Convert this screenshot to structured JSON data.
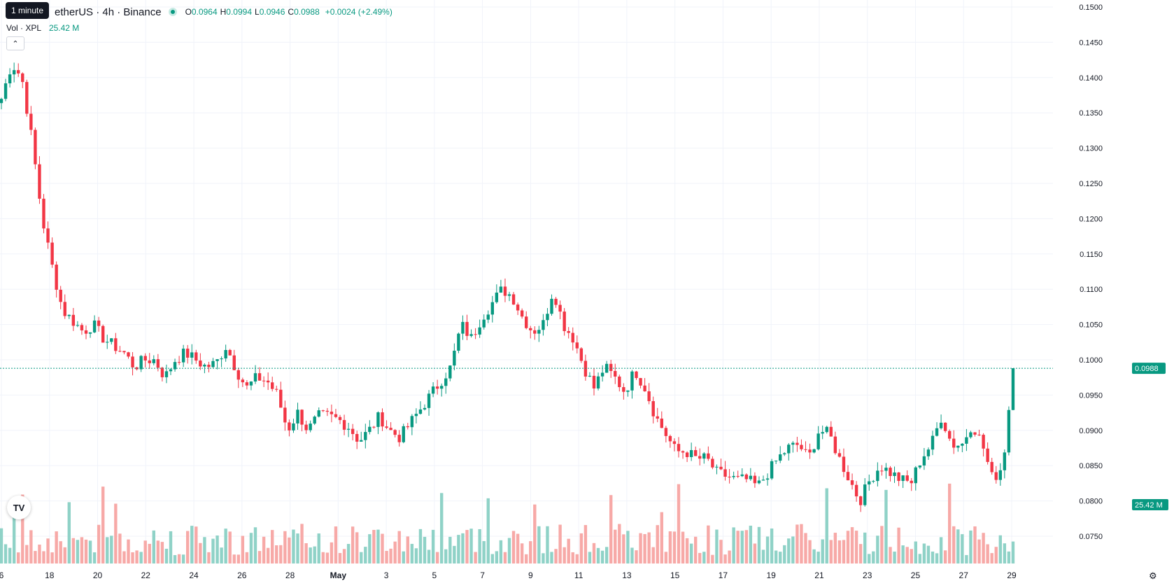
{
  "legend": {
    "symbol": "Plasma / TetherUS · 4h · Binance",
    "symbol_visible": "etherUS · 4h · Binance",
    "o_label": "O",
    "o_val": "0.0964",
    "h_label": "H",
    "h_val": "0.0994",
    "l_label": "L",
    "l_val": "0.0946",
    "c_label": "C",
    "c_val": "0.0988",
    "change": "+0.0024 (+2.49%)"
  },
  "volume": {
    "label": "Vol · XPL",
    "value": "25.42 M",
    "badge": "25.42 M"
  },
  "tooltip": "1 minute",
  "logo_text": "TV",
  "colors": {
    "up": "#089981",
    "down": "#f23645",
    "up_vol": "#8fd2c7",
    "down_vol": "#f7a9a7",
    "grid": "#f0f3fa",
    "accent": "#089981"
  },
  "chart_data": {
    "type": "candlestick",
    "interval": "4h",
    "last_price": 0.0988,
    "last_price_label": "0.0988",
    "y_ticks": [
      "0.1500",
      "0.1450",
      "0.1400",
      "0.1350",
      "0.1300",
      "0.1250",
      "0.1200",
      "0.1150",
      "0.1100",
      "0.1050",
      "0.1000",
      "0.0950",
      "0.0900",
      "0.0850",
      "0.0800",
      "0.0750"
    ],
    "y_tick_values": [
      0.15,
      0.145,
      0.14,
      0.135,
      0.13,
      0.125,
      0.12,
      0.115,
      0.11,
      0.105,
      0.1,
      0.095,
      0.09,
      0.085,
      0.08,
      0.075
    ],
    "x_ticks": [
      "6",
      "18",
      "20",
      "22",
      "24",
      "26",
      "28",
      "May",
      "3",
      "5",
      "7",
      "9",
      "11",
      "13",
      "15",
      "17",
      "19",
      "21",
      "23",
      "25",
      "27",
      "29"
    ],
    "close_path": [
      0.137,
      0.142,
      0.14,
      0.131,
      0.12,
      0.113,
      0.107,
      0.1055,
      0.104,
      0.105,
      0.103,
      0.102,
      0.101,
      0.099,
      0.1,
      0.1,
      0.0975,
      0.1,
      0.101,
      0.1,
      0.099,
      0.0995,
      0.102,
      0.0985,
      0.096,
      0.0975,
      0.097,
      0.095,
      0.09,
      0.0925,
      0.09,
      0.092,
      0.092,
      0.0915,
      0.0905,
      0.0885,
      0.09,
      0.092,
      0.09,
      0.089,
      0.091,
      0.093,
      0.095,
      0.097,
      0.099,
      0.105,
      0.103,
      0.106,
      0.108,
      0.11,
      0.109,
      0.106,
      0.104,
      0.105,
      0.11,
      0.105,
      0.103,
      0.099,
      0.096,
      0.099,
      0.0975,
      0.0955,
      0.0985,
      0.096,
      0.092,
      0.0895,
      0.087,
      0.087,
      0.086,
      0.086,
      0.084,
      0.0835,
      0.083,
      0.083,
      0.082,
      0.084,
      0.086,
      0.0875,
      0.088,
      0.086,
      0.09,
      0.0895,
      0.086,
      0.083,
      0.08,
      0.083,
      0.085,
      0.084,
      0.083,
      0.0825,
      0.086,
      0.088,
      0.092,
      0.088,
      0.088,
      0.091,
      0.088,
      0.083,
      0.085,
      0.0988
    ]
  }
}
